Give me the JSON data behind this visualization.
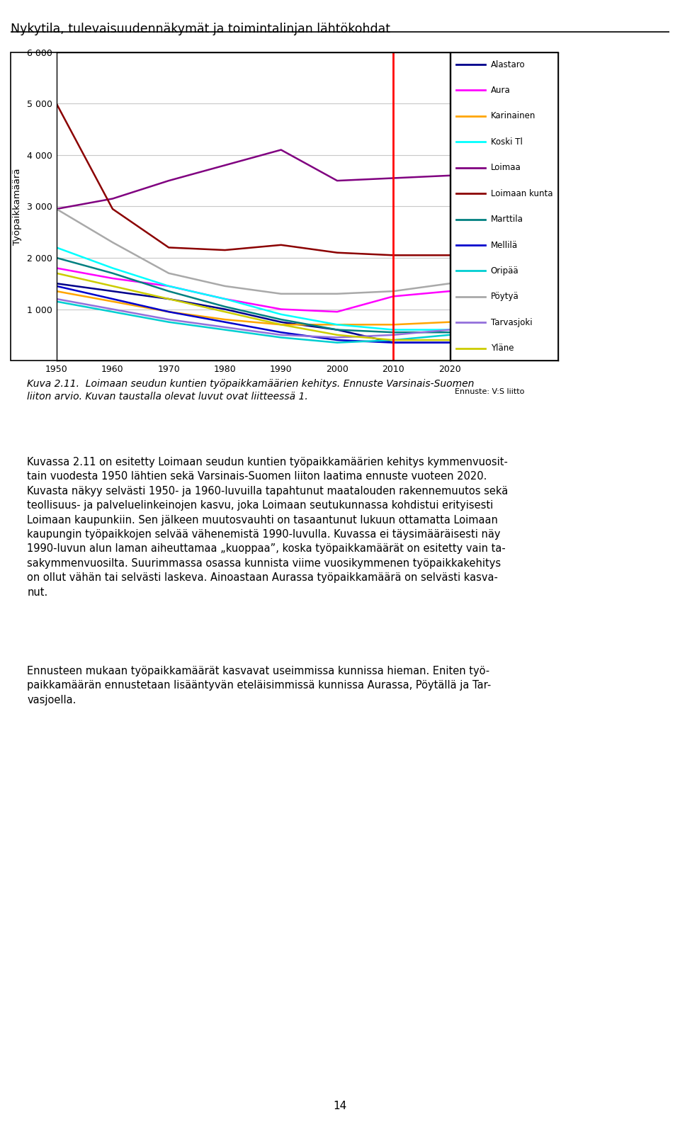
{
  "title": "Nykytila, tulevaisuudennäkymät ja toimintalinjan lähtökohdat",
  "ylabel": "Työpaikkamäärä",
  "years": [
    1950,
    1960,
    1970,
    1980,
    1990,
    2000,
    2010,
    2020
  ],
  "forecast_year": 2010,
  "ylim": [
    0,
    6000
  ],
  "yticks": [
    0,
    1000,
    2000,
    3000,
    4000,
    5000,
    6000
  ],
  "ytick_labels": [
    "",
    "1 000",
    "2 000",
    "3 000",
    "4 000",
    "5 000",
    "6 000"
  ],
  "series": {
    "Alastaro": [
      1500,
      1350,
      1200,
      1000,
      750,
      600,
      350,
      350
    ],
    "Aura": [
      1800,
      1600,
      1450,
      1200,
      1000,
      950,
      1250,
      1350
    ],
    "Karinainen": [
      1350,
      1150,
      950,
      800,
      700,
      700,
      700,
      750
    ],
    "Koski Tl": [
      2200,
      1800,
      1450,
      1200,
      900,
      700,
      600,
      600
    ],
    "Loimaa": [
      2950,
      3150,
      3500,
      3800,
      4100,
      3500,
      3550,
      3600
    ],
    "Loimaan kunta": [
      5000,
      2950,
      2200,
      2150,
      2250,
      2100,
      2050,
      2050
    ],
    "Marttila": [
      2000,
      1700,
      1350,
      1050,
      800,
      600,
      550,
      550
    ],
    "Mellilä": [
      1450,
      1200,
      950,
      750,
      550,
      400,
      350,
      350
    ],
    "Oripää": [
      1150,
      950,
      750,
      600,
      450,
      350,
      400,
      500
    ],
    "Pöytyä": [
      2950,
      2300,
      1700,
      1450,
      1300,
      1300,
      1350,
      1500
    ],
    "Tarvasjoki": [
      1200,
      1000,
      800,
      650,
      500,
      450,
      500,
      600
    ],
    "Yläne": [
      1700,
      1450,
      1200,
      950,
      700,
      500,
      400,
      400
    ]
  },
  "colors": {
    "Alastaro": "#00008B",
    "Aura": "#FF00FF",
    "Karinainen": "#FFA500",
    "Koski Tl": "#00FFFF",
    "Loimaa": "#800080",
    "Loimaan kunta": "#8B0000",
    "Marttila": "#008080",
    "Mellilä": "#0000CD",
    "Oripää": "#00CED1",
    "Pöytyä": "#A9A9A9",
    "Tarvasjoki": "#9370DB",
    "Yläne": "#CCCC00"
  },
  "forecast_label": "Ennuste: V:S liitto",
  "caption": "Kuva 2.11.  Loimaan seudun kuntien työpaikkamäärien kehitys. Ennuste Varsinais-Suomen\nliiton arvio. Kuvan taustalla olevat luvut ovat liitteessä 1.",
  "body_para1": "Kuvassa 2.11 on esitetty Loimaan seudun kuntien työpaikkamäärien kehitys kymmenvuosit-\ntain vuodesta 1950 lähtien sekä Varsinais-Suomen liiton laatima ennuste vuoteen 2020.\nKuvasta näkyy selvästi 1950- ja 1960-luvuilla tapahtunut maatalouden rakennemuutos sekä\nteollisuus- ja palveluelinkeinojen kasvu, joka Loimaan seutukunnassa kohdistui erityisesti\nLoimaan kaupunkiin. Sen jälkeen muutosvauhti on tasaantunut lukuun ottamatta Loimaan\nkaupungin työpaikkojen selvää vähenemistä 1990-luvulla. Kuvassa ei täysimääräisesti näy\n1990-luvun alun laman aiheuttamaa „kuoppaa”, koska työpaikkamäärät on esitetty vain ta-\nsakymmenvuosilta. Suurimmassa osassa kunnista viime vuosikymmenen työpaikkakehitys\non ollut vähän tai selvästi laskeva. Ainoastaan Aurassa työpaikkamäärä on selvästi kasva-\nnut.",
  "body_para2": "Ennusteen mukaan työpaikkamäärät kasvavat useimmissa kunnissa hieman. Eniten työ-\npaikkamäärän ennustetaan lisääntyvän eteläisimmissä kunnissa Aurassa, Pöytällä ja Tar-\nvasjoella.",
  "page_number": "14"
}
